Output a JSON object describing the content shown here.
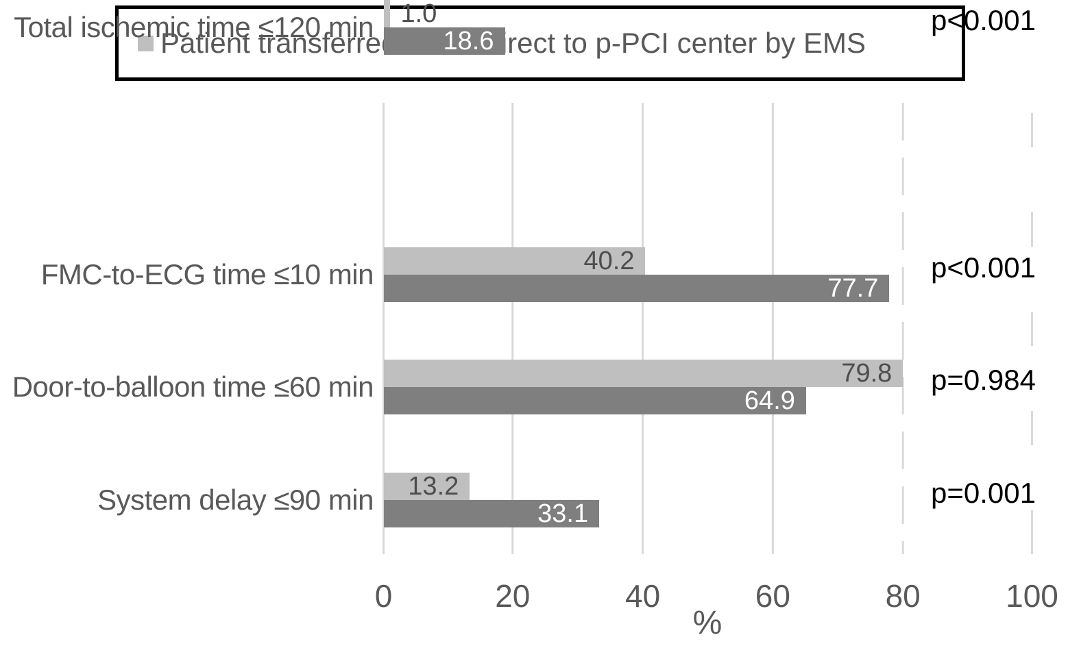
{
  "legend": {
    "items": [
      {
        "label": "Patient transferred",
        "color": "#bfbfbf"
      },
      {
        "label": "Direct to p-PCI center by EMS",
        "color": "#7f7f7f"
      }
    ]
  },
  "chart_data": {
    "type": "bar",
    "orientation": "horizontal",
    "title": "",
    "xlabel": "%",
    "xlim": [
      0,
      100
    ],
    "xtick_labels": [
      "0",
      "20",
      "40",
      "60",
      "80",
      "100"
    ],
    "grid": "vertical light-gray gridlines every 20; lines at 80 and 100 dashed",
    "legend_position": "top",
    "categories": [
      "FMC-to-ECG time ≤10 min",
      "Door-to-balloon time ≤60 min",
      "System delay ≤90 min",
      "Total ischemic time ≤120 min"
    ],
    "series": [
      {
        "name": "Patient transferred",
        "color": "#bfbfbf",
        "label_color": "#4d4d4d",
        "values": [
          40.2,
          79.8,
          13.2,
          1.0
        ],
        "value_labels": [
          "40.2",
          "79.8",
          "13.2",
          "1.0"
        ]
      },
      {
        "name": "Direct to p-PCI center by EMS",
        "color": "#7f7f7f",
        "label_color": "#ffffff",
        "values": [
          77.7,
          64.9,
          33.1,
          18.6
        ],
        "value_labels": [
          "77.7",
          "64.9",
          "33.1",
          "18.6"
        ]
      }
    ],
    "p_values": [
      "p<0.001",
      "p=0.984",
      "p=0.001",
      "p<0.001"
    ]
  }
}
